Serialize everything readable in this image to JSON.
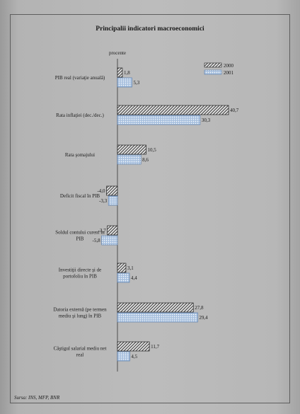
{
  "chart_data": {
    "type": "bar",
    "orientation": "horizontal",
    "title": "Principalii indicatori macroeconomici",
    "unit_label": "procente",
    "source": "Sursa: INS, MFP, BNR",
    "legend_position": "top-right",
    "grid": false,
    "xlim": [
      -6,
      42
    ],
    "categories": [
      [
        "PIB real (variaţie anuală)"
      ],
      [
        "Rata inflaţiei (dec./dec.)"
      ],
      [
        "Rata şomajului"
      ],
      [
        "Deficit fiscal în PIB"
      ],
      [
        "Soldul contului curent în",
        "PIB"
      ],
      [
        "Investiţii directe şi de",
        "portofoliu în PIB"
      ],
      [
        "Datoria externă (pe termen",
        "mediu şi lung) în PIB"
      ],
      [
        "Câştigul salarial mediu net",
        "real"
      ]
    ],
    "series": [
      {
        "name": "2000",
        "pattern": "hatched",
        "color": "#3a3a3a",
        "values": [
          1.8,
          40.7,
          10.5,
          -4.0,
          -3.7,
          3.1,
          27.8,
          11.7
        ],
        "labels": [
          "1,8",
          "40,7",
          "10,5",
          "-4,0",
          "-3,7",
          "3,1",
          "27,8",
          "11,7"
        ]
      },
      {
        "name": "2001",
        "pattern": "dotted",
        "color": "#9db6d6",
        "border": "#5b7fae",
        "values": [
          5.3,
          30.3,
          8.6,
          -3.3,
          -5.8,
          4.4,
          29.4,
          4.5
        ],
        "labels": [
          "5,3",
          "30,3",
          "8,6",
          "-3,3",
          "-5,8",
          "4,4",
          "29,4",
          "4,5"
        ]
      }
    ]
  }
}
